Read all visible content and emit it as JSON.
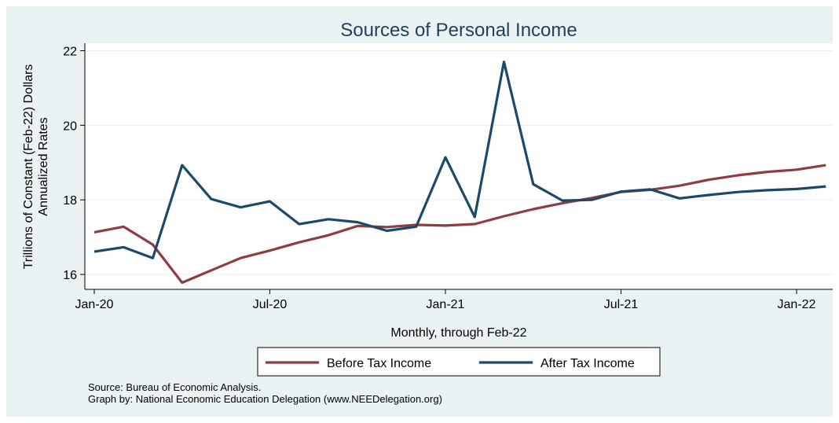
{
  "chart_data": {
    "type": "line",
    "title": "Sources of Personal Income",
    "ylabel": [
      "Trillions of Constant (Feb-22) Dollars",
      "Annualized Rates"
    ],
    "xlabel": "Monthly, through Feb-22",
    "ylim": [
      15.6,
      22.2
    ],
    "yticks": [
      16,
      18,
      20,
      22
    ],
    "xlim": [
      0,
      26
    ],
    "xticks": [
      {
        "pos": 0,
        "label": "Jan-20"
      },
      {
        "pos": 6,
        "label": "Jul-20"
      },
      {
        "pos": 12,
        "label": "Jan-21"
      },
      {
        "pos": 18,
        "label": "Jul-21"
      },
      {
        "pos": 24,
        "label": "Jan-22"
      }
    ],
    "categories": [
      "Jan-20",
      "Feb-20",
      "Mar-20",
      "Apr-20",
      "May-20",
      "Jun-20",
      "Jul-20",
      "Aug-20",
      "Sep-20",
      "Oct-20",
      "Nov-20",
      "Dec-20",
      "Jan-21",
      "Feb-21",
      "Mar-21",
      "Apr-21",
      "May-21",
      "Jun-21",
      "Jul-21",
      "Aug-21",
      "Sep-21",
      "Oct-21",
      "Nov-21",
      "Dec-21",
      "Jan-22",
      "Feb-22"
    ],
    "series": [
      {
        "name": "Before Tax Income",
        "color": "#903c43",
        "values": [
          17.13,
          17.28,
          16.8,
          15.78,
          16.11,
          16.44,
          16.64,
          16.86,
          17.05,
          17.3,
          17.27,
          17.33,
          17.31,
          17.35,
          17.56,
          17.75,
          17.91,
          18.05,
          18.21,
          18.27,
          18.38,
          18.54,
          18.66,
          18.75,
          18.81,
          18.93
        ]
      },
      {
        "name": "After Tax Income",
        "color": "#1c4968",
        "values": [
          16.61,
          16.73,
          16.44,
          18.93,
          18.02,
          17.8,
          17.96,
          17.35,
          17.48,
          17.4,
          17.17,
          17.28,
          19.14,
          17.54,
          21.7,
          18.42,
          17.98,
          18.0,
          18.22,
          18.28,
          18.04,
          18.13,
          18.21,
          18.26,
          18.29,
          18.36
        ]
      }
    ],
    "grid": true,
    "legend": "bottom"
  },
  "source_lines": [
    "Source: Bureau of Economic Analysis.",
    "Graph by: National Economic Education Delegation (www.NEEDelegation.org)"
  ]
}
